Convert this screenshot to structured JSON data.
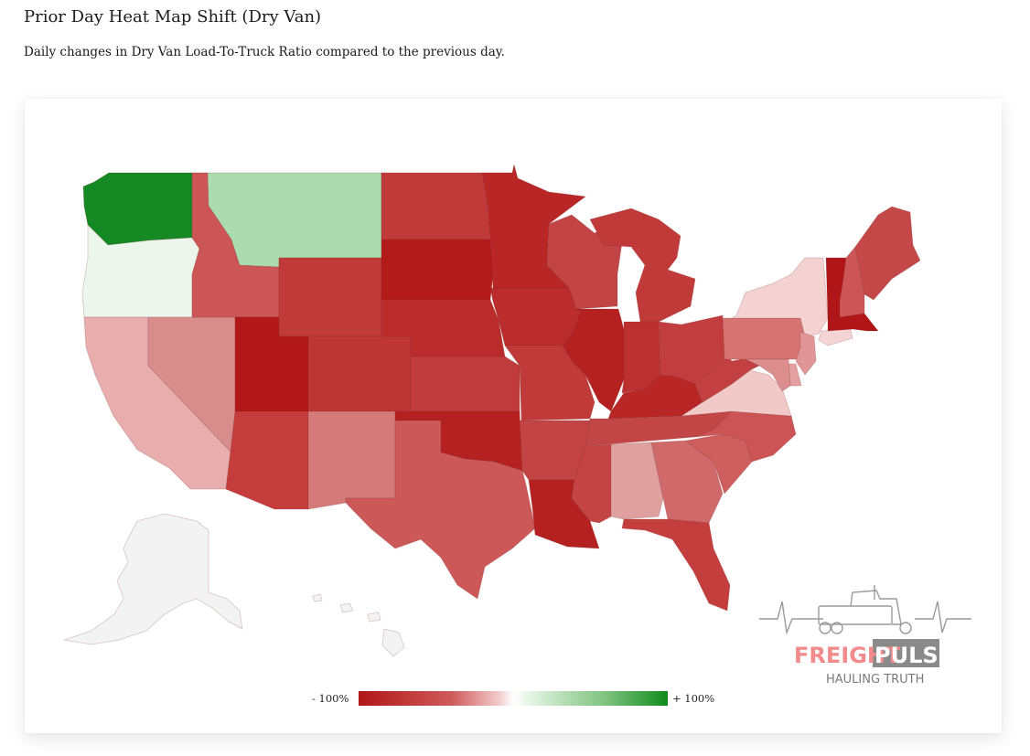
{
  "header": {
    "title": "Prior Day Heat Map Shift (Dry Van)",
    "subtitle": "Daily changes in Dry Van Load-To-Truck Ratio compared to the previous day."
  },
  "legend": {
    "min_label": "- 100%",
    "max_label": "+ 100%",
    "colors": [
      "#b01617",
      "#ffffff",
      "#0f8b1d"
    ]
  },
  "brand": {
    "word1": "FREIGHT",
    "word2": "PULSE",
    "tagline": "HAULING TRUTH",
    "word1_color": "#f28b8b",
    "word2_color": "#8a8a8a"
  },
  "map_data": {
    "states": [
      {
        "code": "WA",
        "color": "#158a24"
      },
      {
        "code": "OR",
        "color": "#ecf6ec"
      },
      {
        "code": "CA",
        "color": "#e8aeae"
      },
      {
        "code": "NV",
        "color": "#d88c8c"
      },
      {
        "code": "ID",
        "color": "#cc5555"
      },
      {
        "code": "MT",
        "color": "#acdbb0"
      },
      {
        "code": "WY",
        "color": "#c03a3a"
      },
      {
        "code": "UT",
        "color": "#b21818"
      },
      {
        "code": "AZ",
        "color": "#c43c3c"
      },
      {
        "code": "CO",
        "color": "#bf3636"
      },
      {
        "code": "NM",
        "color": "#d47a78"
      },
      {
        "code": "ND",
        "color": "#c03a3a"
      },
      {
        "code": "SD",
        "color": "#b31a1a"
      },
      {
        "code": "NE",
        "color": "#ba2c2c"
      },
      {
        "code": "KS",
        "color": "#c03c3c"
      },
      {
        "code": "OK",
        "color": "#b52020"
      },
      {
        "code": "TX",
        "color": "#cc5858"
      },
      {
        "code": "MN",
        "color": "#b82626"
      },
      {
        "code": "IA",
        "color": "#bb2c2c"
      },
      {
        "code": "MO",
        "color": "#c03a3a"
      },
      {
        "code": "AR",
        "color": "#c24444"
      },
      {
        "code": "LA",
        "color": "#b52020"
      },
      {
        "code": "WI",
        "color": "#c24444"
      },
      {
        "code": "IL",
        "color": "#b52020"
      },
      {
        "code": "MI",
        "color": "#c03a3a"
      },
      {
        "code": "IN",
        "color": "#bc3030"
      },
      {
        "code": "OH",
        "color": "#c23e3e"
      },
      {
        "code": "KY",
        "color": "#b82626"
      },
      {
        "code": "TN",
        "color": "#c24646"
      },
      {
        "code": "MS",
        "color": "#c44444"
      },
      {
        "code": "AL",
        "color": "#e0a0a0"
      },
      {
        "code": "GA",
        "color": "#d06a6a"
      },
      {
        "code": "FL",
        "color": "#c43e3e"
      },
      {
        "code": "SC",
        "color": "#cf5e5e"
      },
      {
        "code": "NC",
        "color": "#cc5454"
      },
      {
        "code": "VA",
        "color": "#f2c9c9"
      },
      {
        "code": "WV",
        "color": "#c24040"
      },
      {
        "code": "PA",
        "color": "#d67474"
      },
      {
        "code": "NY",
        "color": "#f4d2d2"
      },
      {
        "code": "VT",
        "color": "#b01617"
      },
      {
        "code": "NH",
        "color": "#cc5555"
      },
      {
        "code": "ME",
        "color": "#c44848"
      },
      {
        "code": "MA",
        "color": "#b01617"
      },
      {
        "code": "CT",
        "color": "#f4d4d4"
      },
      {
        "code": "NJ",
        "color": "#e09696"
      },
      {
        "code": "DE",
        "color": "#e4a0a0"
      },
      {
        "code": "MD",
        "color": "#dc8e8e"
      },
      {
        "code": "AK",
        "color": "#f3f3f3"
      },
      {
        "code": "HI",
        "color": "#f3f3f3"
      }
    ]
  }
}
